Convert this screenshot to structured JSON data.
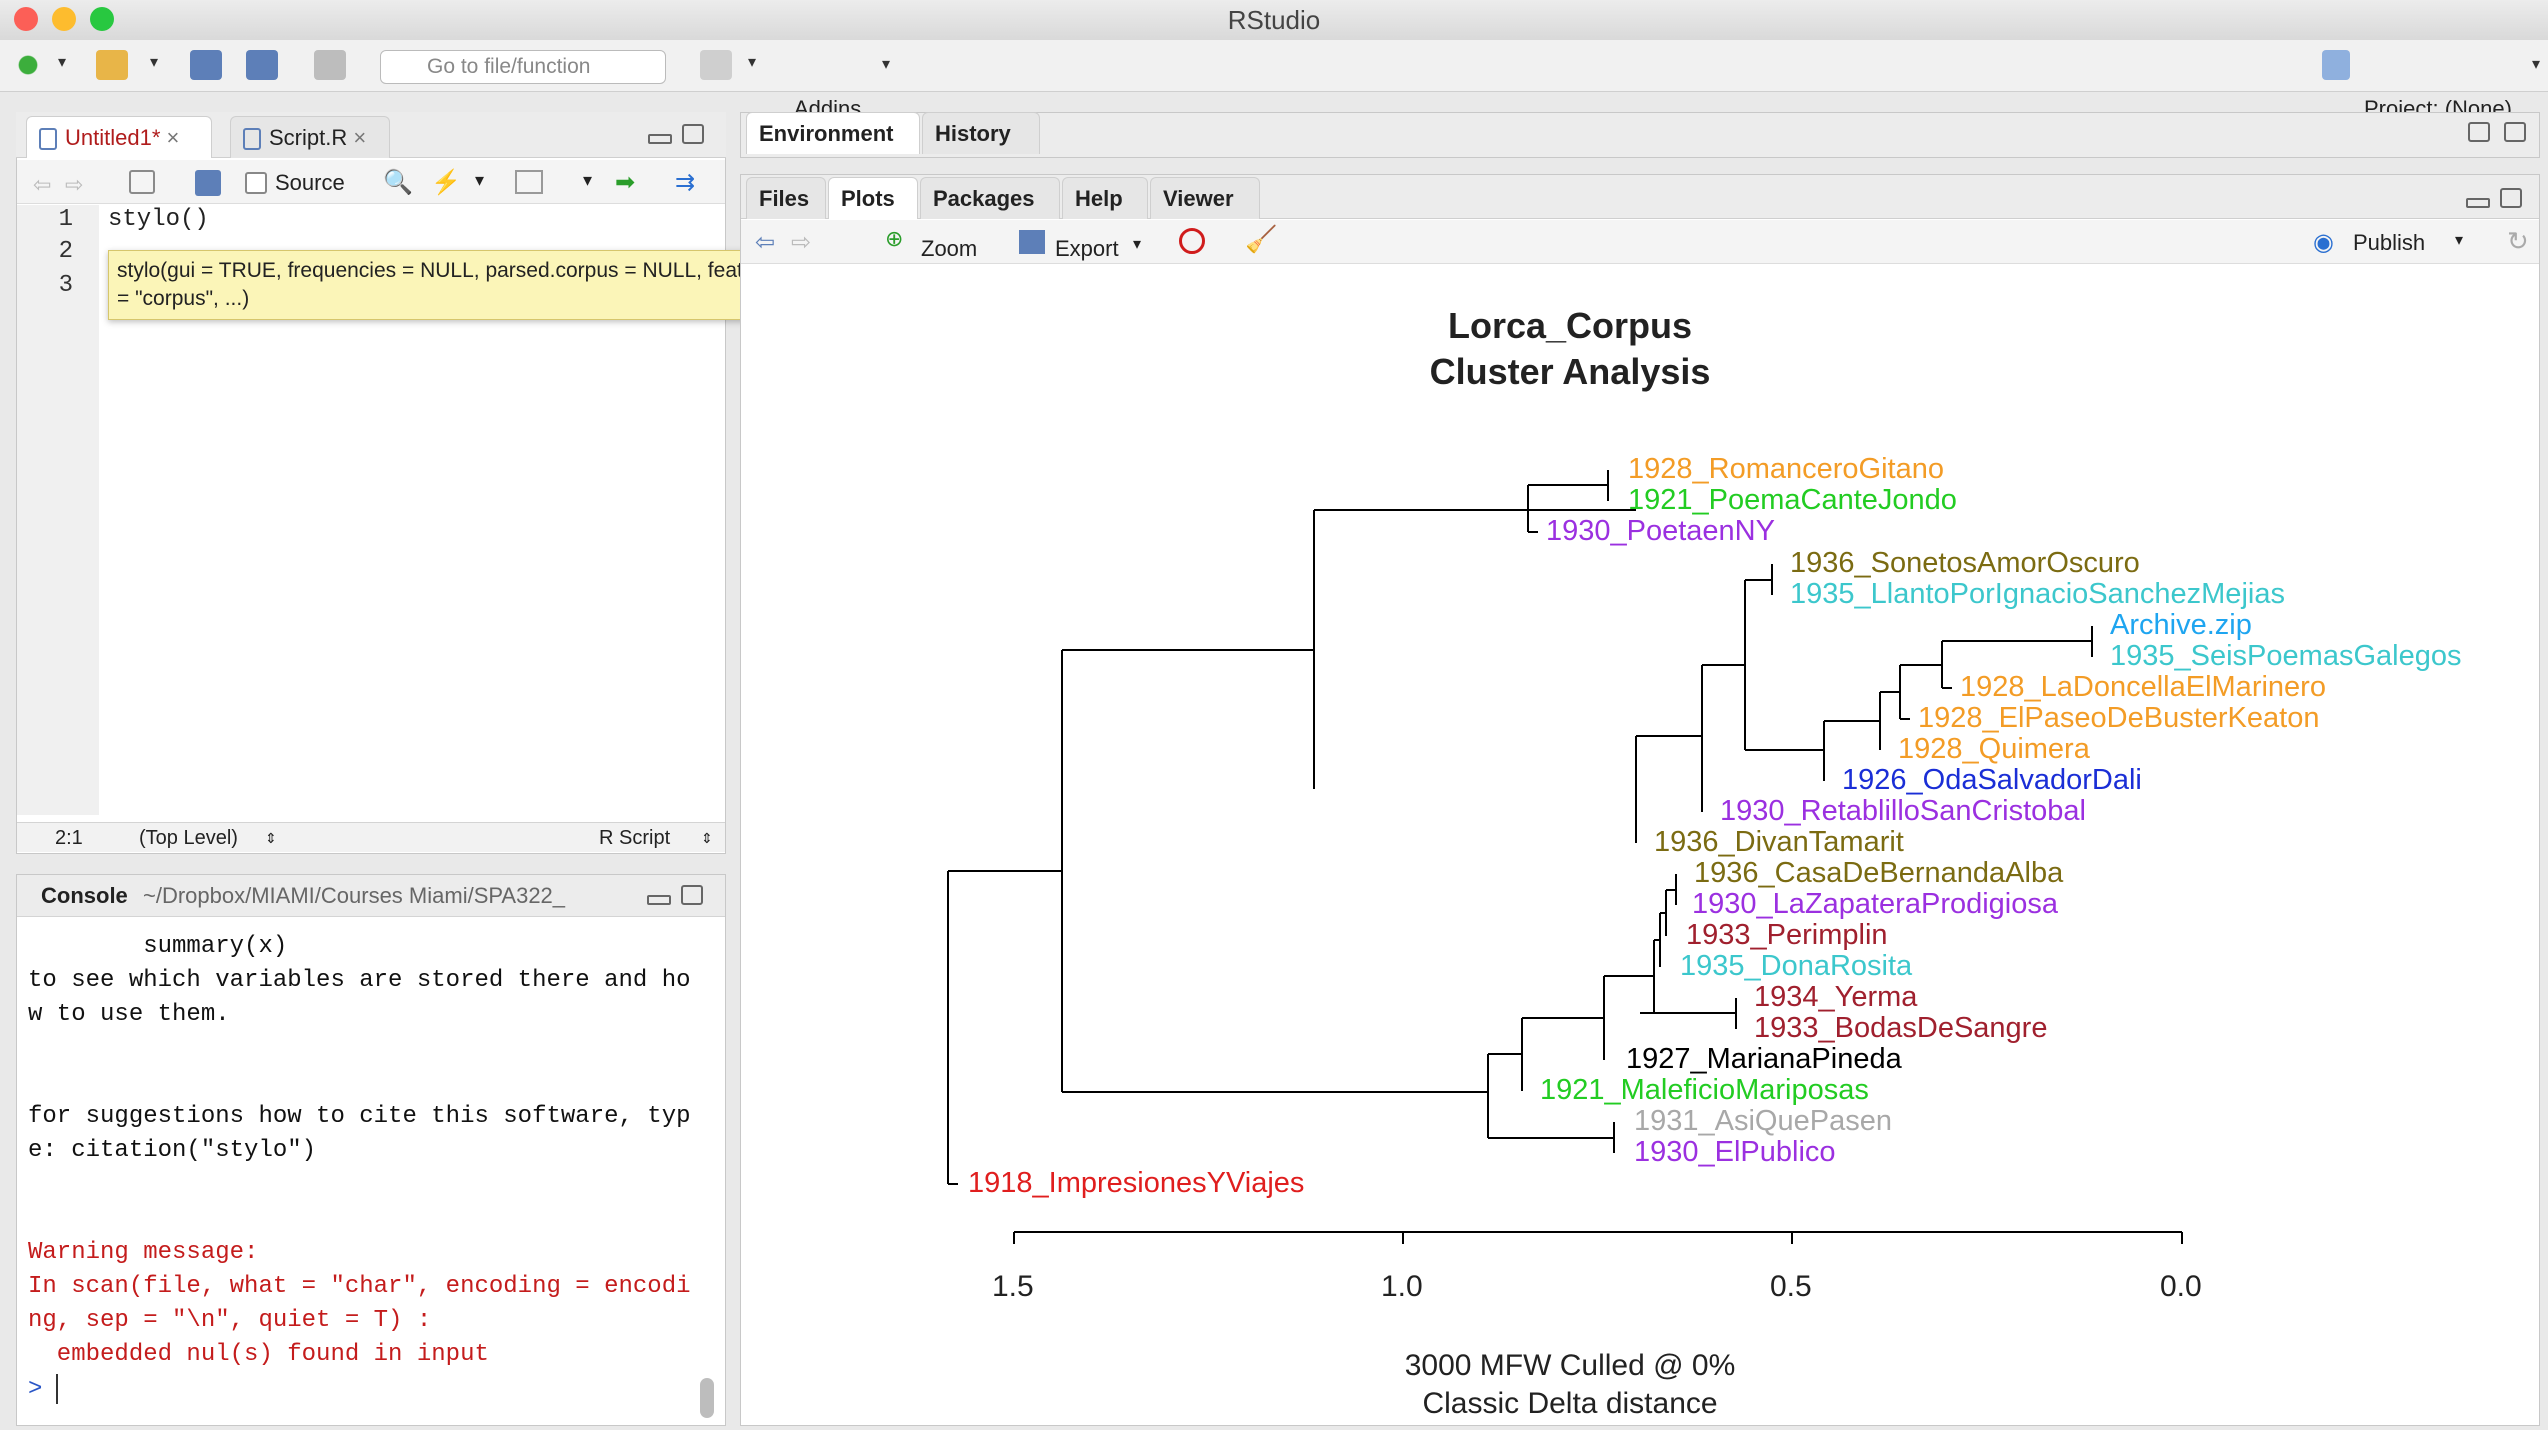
{
  "window": {
    "title": "RStudio"
  },
  "toolbar": {
    "goto_placeholder": "Go to file/function",
    "addins": "Addins",
    "project": "Project: (None)"
  },
  "editor": {
    "tabs": [
      {
        "label": "Untitled1*"
      },
      {
        "label": "Script.R"
      }
    ],
    "source_label": "Source",
    "lines": [
      {
        "num": "1",
        "text": "stylo()"
      },
      {
        "num": "2",
        "text": ""
      },
      {
        "num": "3",
        "text": ""
      }
    ],
    "tooltip": "stylo(gui = TRUE, frequencies = NULL, parsed.corpus = NULL, features = NULL, path = NULL, corpus.dir = \"corpus\", ...)",
    "status": {
      "position": "2:1",
      "scope": "(Top Level)",
      "type": "R Script"
    }
  },
  "console": {
    "title": "Console",
    "path": "~/Dropbox/MIAMI/Courses Miami/SPA322_",
    "lines": [
      {
        "text": "        summary(x)",
        "kind": "normal"
      },
      {
        "text": "to see which variables are stored there and ho",
        "kind": "normal"
      },
      {
        "text": "w to use them.",
        "kind": "normal"
      },
      {
        "text": "",
        "kind": "normal"
      },
      {
        "text": "",
        "kind": "normal"
      },
      {
        "text": "for suggestions how to cite this software, typ",
        "kind": "normal"
      },
      {
        "text": "e: citation(\"stylo\")",
        "kind": "normal"
      },
      {
        "text": "",
        "kind": "normal"
      },
      {
        "text": "",
        "kind": "normal"
      },
      {
        "text": "Warning message:",
        "kind": "warn"
      },
      {
        "text": "In scan(file, what = \"char\", encoding = encodi",
        "kind": "warn"
      },
      {
        "text": "ng, sep = \"\\n\", quiet = T) :",
        "kind": "warn"
      },
      {
        "text": "  embedded nul(s) found in input",
        "kind": "warn"
      }
    ],
    "prompt": ">"
  },
  "env_tabs": [
    {
      "label": "Environment"
    },
    {
      "label": "History"
    }
  ],
  "files_tabs": [
    {
      "label": "Files"
    },
    {
      "label": "Plots"
    },
    {
      "label": "Packages"
    },
    {
      "label": "Help"
    },
    {
      "label": "Viewer"
    }
  ],
  "plots_toolbar": {
    "zoom": "Zoom",
    "export": "Export",
    "publish": "Publish"
  },
  "colors": {
    "accent_red": "#c41c1c",
    "tooltip_bg": "#fbf5b8"
  },
  "chart_data": {
    "type": "dendrogram",
    "title": "Lorca_Corpus",
    "subtitle": "Cluster Analysis",
    "xlabel": "3000 MFW  Culled @ 0%",
    "xlabel2": "Classic Delta distance",
    "x_ticks": [
      "1.5",
      "1.0",
      "0.5",
      "0.0"
    ],
    "xlim": [
      1.5,
      0.0
    ],
    "leaves": [
      {
        "label": "1928_RomanceroGitano",
        "color": "#f39c26"
      },
      {
        "label": "1921_PoemaCanteJondo",
        "color": "#22cc22"
      },
      {
        "label": "1930_PoetaenNY",
        "color": "#9b30e0"
      },
      {
        "label": "1936_SonetosAmorOscuro",
        "color": "#7b6b12"
      },
      {
        "label": "1935_LlantoPorIgnacioSanchezMejias",
        "color": "#3cc7cc"
      },
      {
        "label": "Archive.zip",
        "color": "#1ea5f0"
      },
      {
        "label": "1935_SeisPoemasGalegos",
        "color": "#3cc7cc"
      },
      {
        "label": "1928_LaDoncellaElMarinero",
        "color": "#f39c26"
      },
      {
        "label": "1928_ElPaseoDeBusterKeaton",
        "color": "#f39c26"
      },
      {
        "label": "1928_Quimera",
        "color": "#f39c26"
      },
      {
        "label": "1926_OdaSalvadorDali",
        "color": "#1a2ed6"
      },
      {
        "label": "1930_RetablilloSanCristobal",
        "color": "#9b30e0"
      },
      {
        "label": "1936_DivanTamarit",
        "color": "#7b6b12"
      },
      {
        "label": "1936_CasaDeBernandaAlba",
        "color": "#7b6b12"
      },
      {
        "label": "1930_LaZapateraProdigiosa",
        "color": "#9b30e0"
      },
      {
        "label": "1933_Perimplin",
        "color": "#a0202e"
      },
      {
        "label": "1935_DonaRosita",
        "color": "#3cc7cc"
      },
      {
        "label": "1934_Yerma",
        "color": "#a0202e"
      },
      {
        "label": "1933_BodasDeSangre",
        "color": "#a0202e"
      },
      {
        "label": "1927_MarianaPineda",
        "color": "#000000"
      },
      {
        "label": "1921_MaleficioMariposas",
        "color": "#22cc22"
      },
      {
        "label": "1931_AsiQuePasen",
        "color": "#a8a8a8"
      },
      {
        "label": "1930_ElPublico",
        "color": "#9b30e0"
      },
      {
        "label": "1918_ImpresionesYViajes",
        "color": "#e01e1e"
      }
    ]
  }
}
